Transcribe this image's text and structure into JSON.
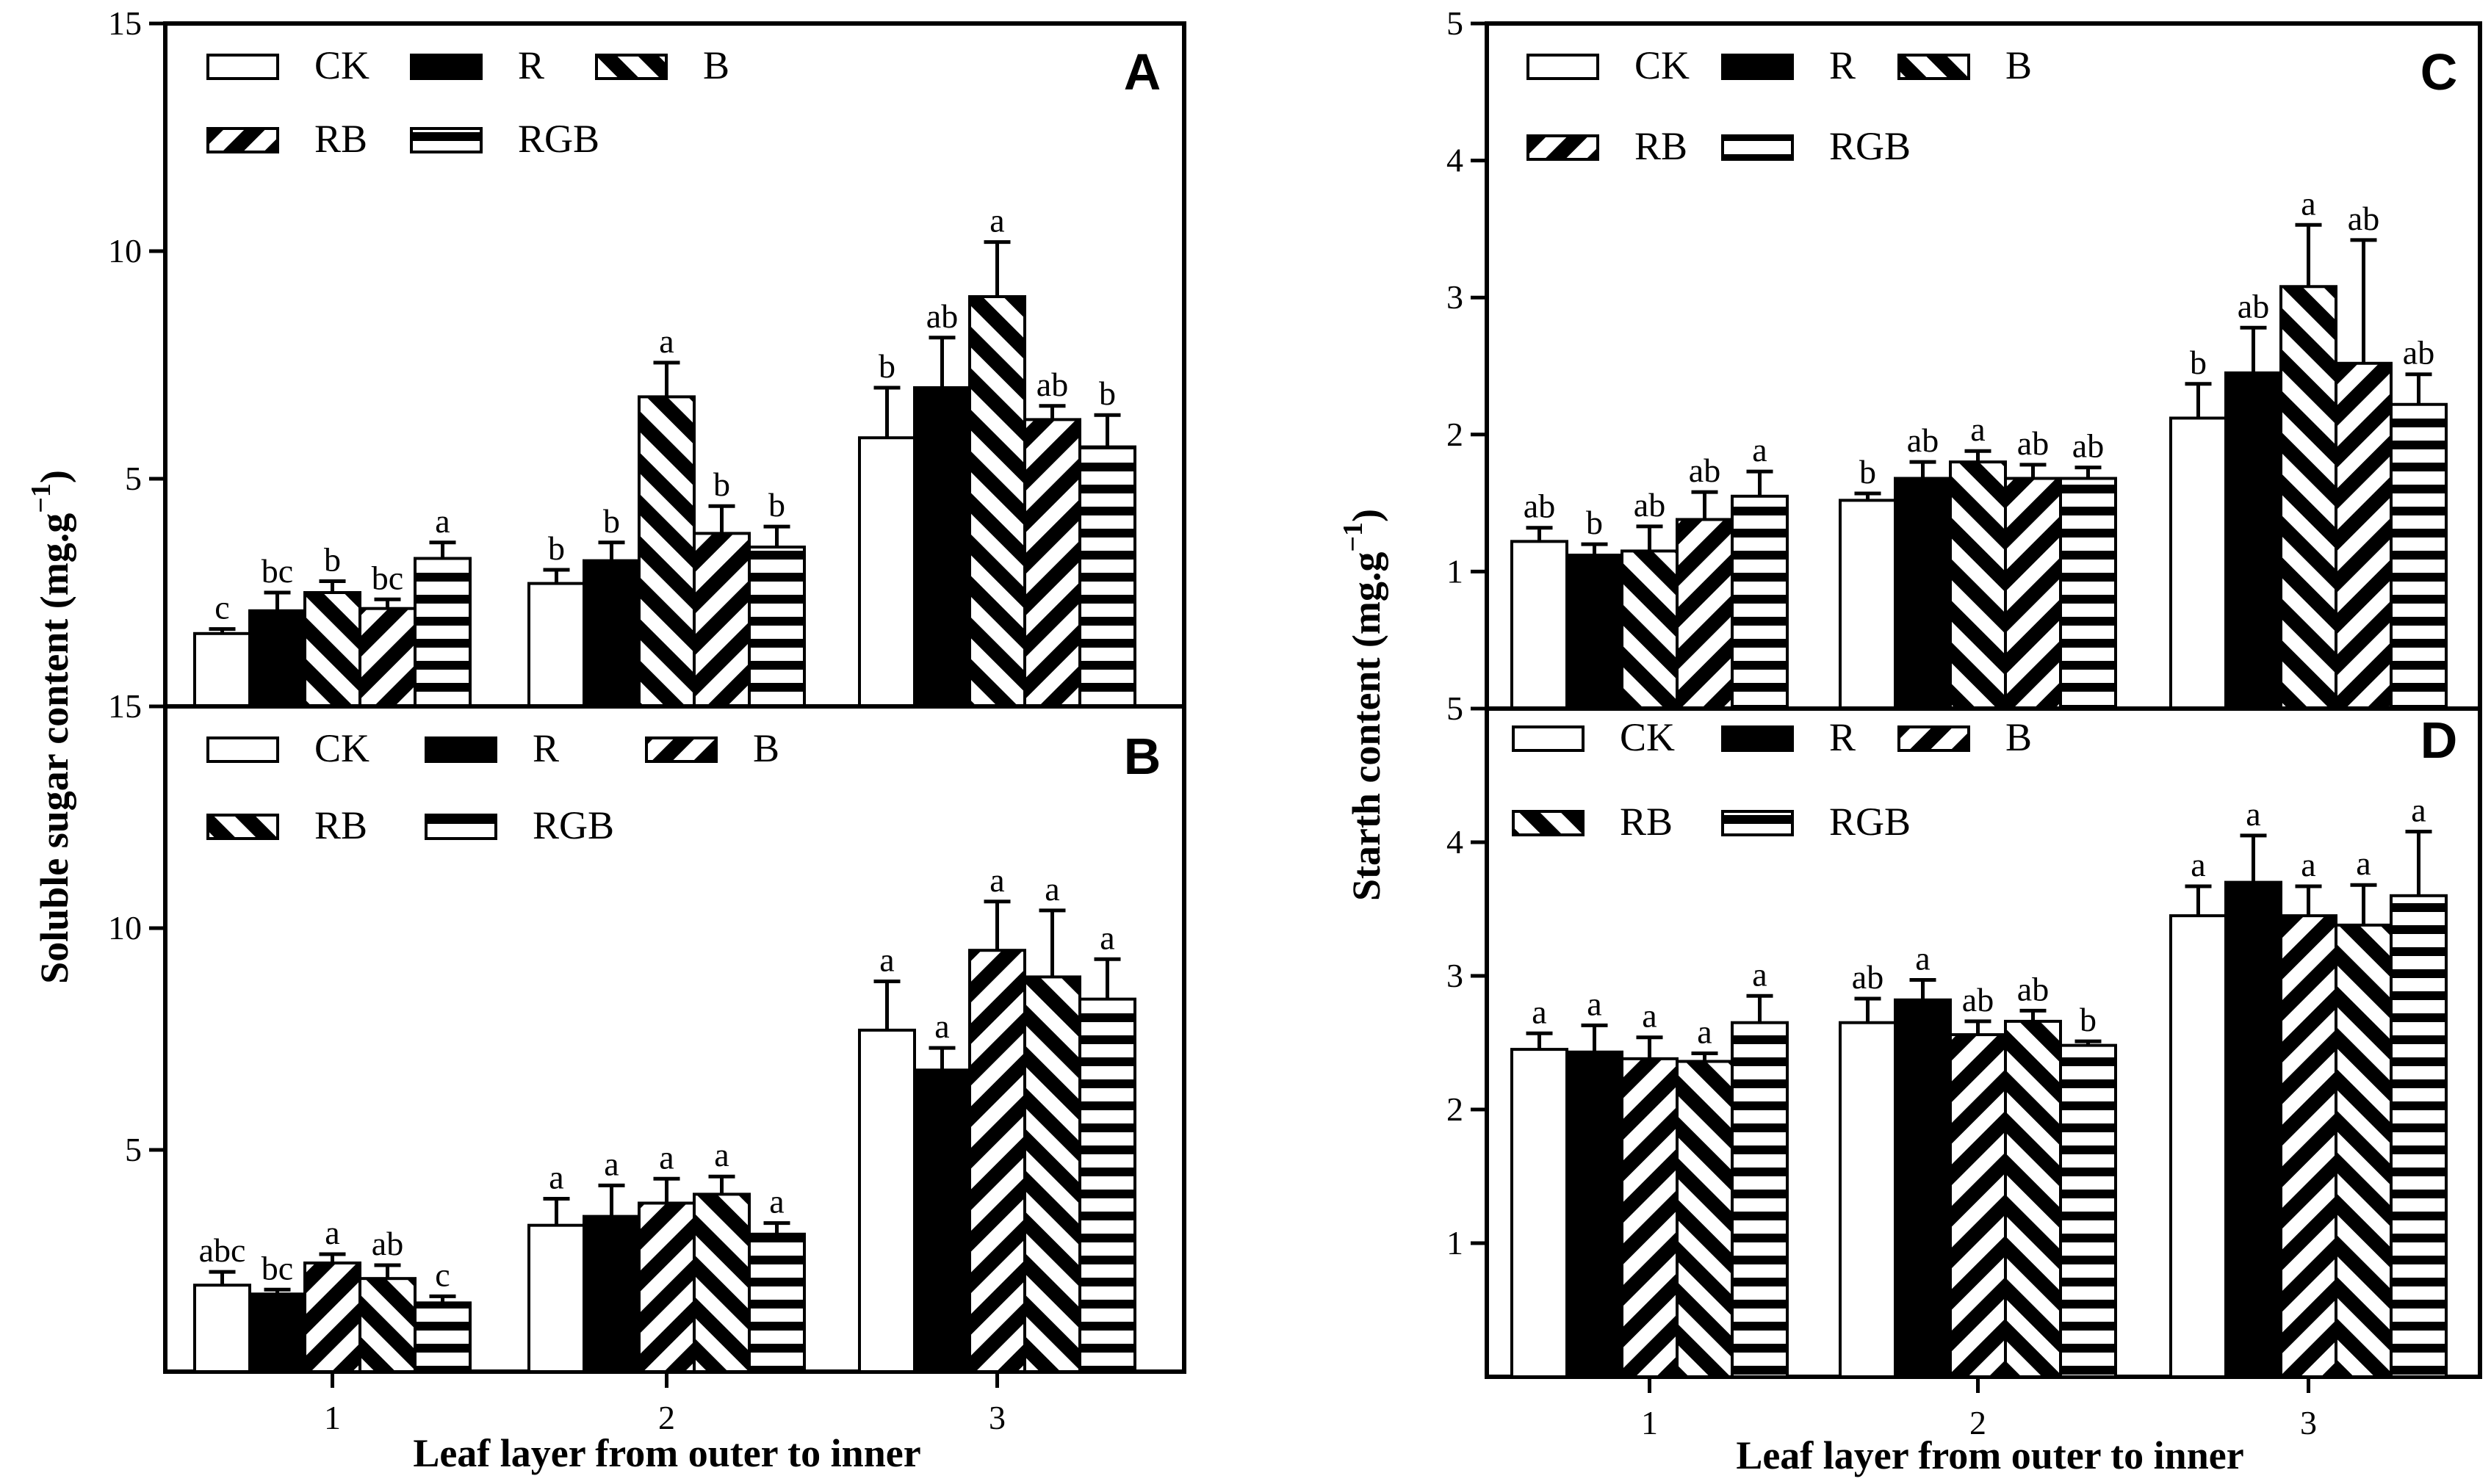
{
  "chart_data": [
    {
      "type": "bar",
      "panel": "A",
      "ylabel": "Soluble sugar content (mg.g",
      "ylabel_sup": "−1",
      "ylabel_close": ")",
      "xlabel": "",
      "ylim": [
        0,
        15
      ],
      "yticks": [
        "5",
        "10",
        "15"
      ],
      "categories": [
        "1",
        "2",
        "3"
      ],
      "series": [
        {
          "name": "CK",
          "pattern": "empty",
          "values": [
            1.6,
            2.7,
            5.9
          ],
          "errors": [
            0.1,
            0.3,
            1.1
          ],
          "labels": [
            "c",
            "b",
            "b"
          ]
        },
        {
          "name": "R",
          "pattern": "solid",
          "values": [
            2.1,
            3.2,
            7.0
          ],
          "errors": [
            0.4,
            0.4,
            1.1
          ],
          "labels": [
            "bc",
            "b",
            "ab"
          ]
        },
        {
          "name": "B",
          "pattern": "back",
          "values": [
            2.5,
            6.8,
            9.0
          ],
          "errors": [
            0.25,
            0.75,
            1.2
          ],
          "labels": [
            "b",
            "a",
            "a"
          ]
        },
        {
          "name": "RB",
          "pattern": "fwd",
          "values": [
            2.15,
            3.8,
            6.3
          ],
          "errors": [
            0.2,
            0.6,
            0.3
          ],
          "labels": [
            "bc",
            "b",
            "ab"
          ]
        },
        {
          "name": "RGB",
          "pattern": "horiz",
          "values": [
            3.25,
            3.5,
            5.7
          ],
          "errors": [
            0.35,
            0.45,
            0.7
          ],
          "labels": [
            "a",
            "b",
            "b"
          ]
        }
      ]
    },
    {
      "type": "bar",
      "panel": "B",
      "ylabel": "",
      "xlabel": "",
      "ylim": [
        0,
        15
      ],
      "yticks": [
        "5",
        "10",
        "15"
      ],
      "categories": [
        "1",
        "2",
        "3"
      ],
      "series": [
        {
          "name": "CK",
          "pattern": "empty",
          "values": [
            1.95,
            3.3,
            7.7
          ],
          "errors": [
            0.3,
            0.6,
            1.1
          ],
          "labels": [
            "abc",
            "a",
            "a"
          ]
        },
        {
          "name": "R",
          "pattern": "solid",
          "values": [
            1.75,
            3.5,
            6.8
          ],
          "errors": [
            0.1,
            0.7,
            0.5
          ],
          "labels": [
            "bc",
            "a",
            "a"
          ]
        },
        {
          "name": "B",
          "pattern": "fwd",
          "values": [
            2.45,
            3.8,
            9.5
          ],
          "errors": [
            0.2,
            0.55,
            1.1
          ],
          "labels": [
            "a",
            "a",
            "a"
          ]
        },
        {
          "name": "RB",
          "pattern": "back",
          "values": [
            2.1,
            4.0,
            8.9
          ],
          "errors": [
            0.3,
            0.4,
            1.5
          ],
          "labels": [
            "ab",
            "a",
            "a"
          ]
        },
        {
          "name": "RGB",
          "pattern": "horiz",
          "values": [
            1.55,
            3.1,
            8.4
          ],
          "errors": [
            0.15,
            0.25,
            0.9
          ],
          "labels": [
            "c",
            "a",
            "a"
          ]
        }
      ]
    },
    {
      "type": "bar",
      "panel": "C",
      "ylabel": "Starth content (mg.g",
      "ylabel_sup": "−1",
      "ylabel_close": ")",
      "xlabel": "",
      "ylim": [
        0,
        5
      ],
      "yticks": [
        "1",
        "2",
        "3",
        "4",
        "5"
      ],
      "categories": [
        "1",
        "2",
        "3"
      ],
      "series": [
        {
          "name": "CK",
          "pattern": "empty",
          "values": [
            1.22,
            1.52,
            2.12
          ],
          "errors": [
            0.1,
            0.05,
            0.25
          ],
          "labels": [
            "ab",
            "b",
            "b"
          ]
        },
        {
          "name": "R",
          "pattern": "solid",
          "values": [
            1.12,
            1.68,
            2.45
          ],
          "errors": [
            0.08,
            0.12,
            0.33
          ],
          "labels": [
            "b",
            "ab",
            "ab"
          ]
        },
        {
          "name": "B",
          "pattern": "back",
          "values": [
            1.15,
            1.8,
            3.08
          ],
          "errors": [
            0.18,
            0.08,
            0.45
          ],
          "labels": [
            "ab",
            "a",
            "a"
          ]
        },
        {
          "name": "RB",
          "pattern": "fwd",
          "values": [
            1.38,
            1.68,
            2.52
          ],
          "errors": [
            0.2,
            0.1,
            0.9
          ],
          "labels": [
            "ab",
            "ab",
            "ab"
          ]
        },
        {
          "name": "RGB",
          "pattern": "horiz",
          "values": [
            1.55,
            1.68,
            2.22
          ],
          "errors": [
            0.18,
            0.08,
            0.22
          ],
          "labels": [
            "a",
            "ab",
            "ab"
          ]
        }
      ]
    },
    {
      "type": "bar",
      "panel": "D",
      "ylabel": "",
      "xlabel": "",
      "ylim": [
        0,
        5
      ],
      "yticks": [
        "1",
        "2",
        "3",
        "4",
        "5"
      ],
      "categories": [
        "1",
        "2",
        "3"
      ],
      "series": [
        {
          "name": "CK",
          "pattern": "empty",
          "values": [
            2.45,
            2.65,
            3.45
          ],
          "errors": [
            0.12,
            0.18,
            0.22
          ],
          "labels": [
            "a",
            "ab",
            "a"
          ]
        },
        {
          "name": "R",
          "pattern": "solid",
          "values": [
            2.43,
            2.82,
            3.7
          ],
          "errors": [
            0.2,
            0.15,
            0.35
          ],
          "labels": [
            "a",
            "a",
            "a"
          ]
        },
        {
          "name": "B",
          "pattern": "fwd",
          "values": [
            2.38,
            2.56,
            3.45
          ],
          "errors": [
            0.16,
            0.1,
            0.22
          ],
          "labels": [
            "a",
            "ab",
            "a"
          ]
        },
        {
          "name": "RB",
          "pattern": "back",
          "values": [
            2.36,
            2.66,
            3.38
          ],
          "errors": [
            0.06,
            0.08,
            0.3
          ],
          "labels": [
            "a",
            "ab",
            "a"
          ]
        },
        {
          "name": "RGB",
          "pattern": "horiz",
          "values": [
            2.65,
            2.48,
            3.6
          ],
          "errors": [
            0.2,
            0.03,
            0.48
          ],
          "labels": [
            "a",
            "b",
            "a"
          ]
        }
      ]
    }
  ],
  "shared": {
    "xlabel": "Leaf layer from outer to inner"
  }
}
